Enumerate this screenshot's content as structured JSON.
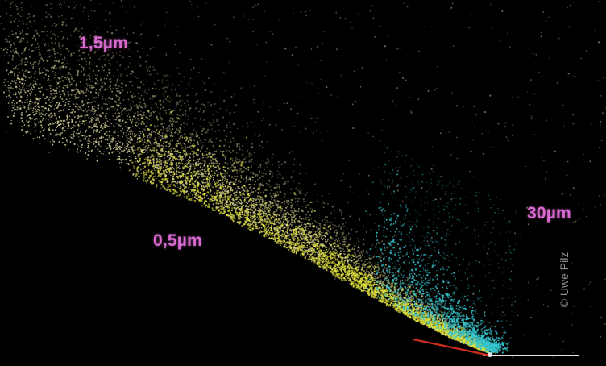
{
  "labels": {
    "small": "1,5µm",
    "medium": "0,5µm",
    "large": "30µm"
  },
  "credit": "© Uwe Pilz",
  "colors": {
    "background": "#000000",
    "label": "#d86ad0",
    "fine_dust": "#e8e3a6",
    "dense_dust": "#e0e040",
    "large_grains": "#35c8d0",
    "nucleus_line": "#d83020",
    "baseline": "#e8e8e8",
    "credit": "#8e8e8e"
  }
}
